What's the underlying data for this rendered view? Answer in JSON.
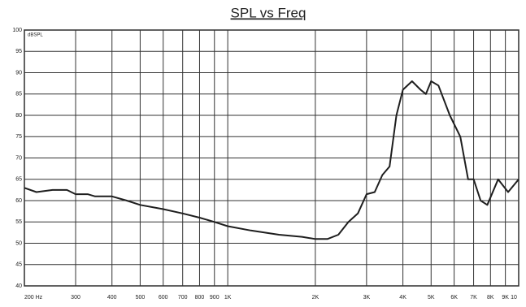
{
  "chart_data": {
    "type": "line",
    "title": "SPL vs Freq",
    "ylabel": "dBSPL",
    "xscale": "log",
    "grid": true,
    "xlim": [
      200,
      10000
    ],
    "ylim": [
      40,
      100
    ],
    "xticks": [
      {
        "value": 200,
        "label": "200 Hz"
      },
      300,
      400,
      500,
      600,
      700,
      800,
      900,
      {
        "value": 1000,
        "label": "1K"
      },
      {
        "value": 2000,
        "label": "2K"
      },
      {
        "value": 3000,
        "label": "3K"
      },
      {
        "value": 4000,
        "label": "4K"
      },
      {
        "value": 5000,
        "label": "5K"
      },
      {
        "value": 6000,
        "label": "6K"
      },
      {
        "value": 7000,
        "label": "7K"
      },
      {
        "value": 8000,
        "label": "8K"
      },
      {
        "value": 9000,
        "label": "9K"
      },
      {
        "value": 10000,
        "label": "10"
      }
    ],
    "yticks": [
      100,
      95,
      90,
      85,
      80,
      75,
      70,
      65,
      60,
      55,
      50,
      45,
      40
    ],
    "x": [
      200,
      220,
      250,
      280,
      300,
      330,
      350,
      400,
      450,
      500,
      600,
      700,
      800,
      900,
      1000,
      1200,
      1500,
      1800,
      2000,
      2200,
      2400,
      2600,
      2800,
      3000,
      3200,
      3400,
      3600,
      3800,
      4000,
      4300,
      4600,
      4800,
      5000,
      5300,
      5800,
      6300,
      6700,
      7000,
      7400,
      7800,
      8500,
      9200,
      10000
    ],
    "series": [
      {
        "color": "#1e1e1e",
        "values": [
          63,
          62,
          62.5,
          62.5,
          61.5,
          61.5,
          61,
          61,
          60,
          59,
          58,
          57,
          56,
          55,
          54,
          53,
          52,
          51.5,
          51,
          51,
          52,
          55,
          57,
          61.5,
          62,
          66,
          68,
          80,
          86,
          88,
          86,
          85,
          88,
          87,
          80,
          75,
          65,
          65,
          60,
          59,
          65,
          62,
          65
        ]
      }
    ]
  }
}
